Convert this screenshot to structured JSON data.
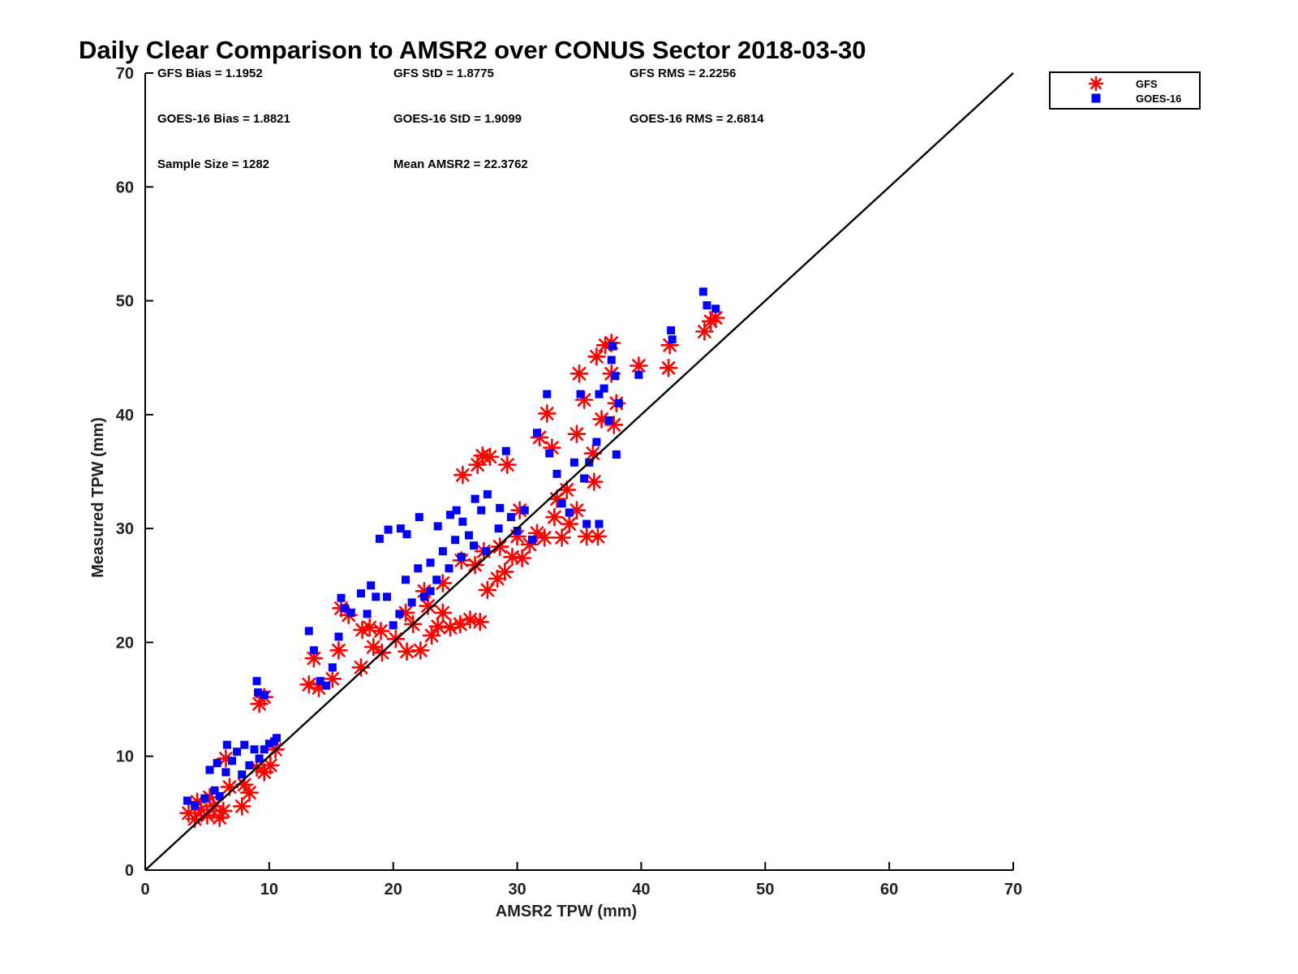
{
  "chart_data": {
    "type": "scatter",
    "title": "Daily Clear Comparison to AMSR2 over CONUS Sector 2018-03-30",
    "xlabel": "AMSR2 TPW (mm)",
    "ylabel": "Measured TPW (mm)",
    "xlim": [
      0,
      70
    ],
    "ylim": [
      0,
      70
    ],
    "x_ticks": [
      0,
      10,
      20,
      30,
      40,
      50,
      60,
      70
    ],
    "y_ticks": [
      0,
      10,
      20,
      30,
      40,
      50,
      60,
      70
    ],
    "grid": false,
    "legend_position": "outside-top-right",
    "reference_line": {
      "from": [
        0,
        0
      ],
      "to": [
        70,
        70
      ]
    },
    "stats": [
      "GFS Bias = 1.1952",
      "GFS StD = 1.8775",
      "GFS RMS = 2.2256",
      "GOES-16 Bias = 1.8821",
      "GOES-16 StD = 1.9099",
      "GOES-16 RMS = 2.6814",
      "Sample Size = 1282",
      "Mean AMSR2 = 22.3762"
    ],
    "series": [
      {
        "name": "GFS",
        "color": "#ff0000",
        "marker": "asterisk",
        "points": [
          [
            3.5,
            5.0
          ],
          [
            4.0,
            4.5
          ],
          [
            4.5,
            5.3
          ],
          [
            5.0,
            4.8
          ],
          [
            5.5,
            5.6
          ],
          [
            6.0,
            4.6
          ],
          [
            6.3,
            5.2
          ],
          [
            4.2,
            6.0
          ],
          [
            5.2,
            6.4
          ],
          [
            7.8,
            5.6
          ],
          [
            6.8,
            7.3
          ],
          [
            8.0,
            7.5
          ],
          [
            8.4,
            6.8
          ],
          [
            6.5,
            9.8
          ],
          [
            9.0,
            9.0
          ],
          [
            9.6,
            8.6
          ],
          [
            10.1,
            9.2
          ],
          [
            10.5,
            10.6
          ],
          [
            9.2,
            14.6
          ],
          [
            9.6,
            15.2
          ],
          [
            13.2,
            16.3
          ],
          [
            14.0,
            16.0
          ],
          [
            13.6,
            18.6
          ],
          [
            15.1,
            16.8
          ],
          [
            15.6,
            19.3
          ],
          [
            15.8,
            23.0
          ],
          [
            16.4,
            22.4
          ],
          [
            17.5,
            21.1
          ],
          [
            18.1,
            21.3
          ],
          [
            17.4,
            17.8
          ],
          [
            18.4,
            19.6
          ],
          [
            19.1,
            19.1
          ],
          [
            19.0,
            21.0
          ],
          [
            20.2,
            20.3
          ],
          [
            21.1,
            19.2
          ],
          [
            21.6,
            21.6
          ],
          [
            22.2,
            19.3
          ],
          [
            23.1,
            20.6
          ],
          [
            23.6,
            21.4
          ],
          [
            24.0,
            22.6
          ],
          [
            24.6,
            21.3
          ],
          [
            25.4,
            21.6
          ],
          [
            26.2,
            22.0
          ],
          [
            27.0,
            21.8
          ],
          [
            27.6,
            24.6
          ],
          [
            28.4,
            25.6
          ],
          [
            29.0,
            26.2
          ],
          [
            29.6,
            27.5
          ],
          [
            30.4,
            27.4
          ],
          [
            31.0,
            28.6
          ],
          [
            31.6,
            29.6
          ],
          [
            32.2,
            29.2
          ],
          [
            33.0,
            31.0
          ],
          [
            33.6,
            29.2
          ],
          [
            34.2,
            30.4
          ],
          [
            34.8,
            31.6
          ],
          [
            35.6,
            29.3
          ],
          [
            36.5,
            29.3
          ],
          [
            25.6,
            34.7
          ],
          [
            26.8,
            35.6
          ],
          [
            27.2,
            36.4
          ],
          [
            27.8,
            36.3
          ],
          [
            29.2,
            35.6
          ],
          [
            30.2,
            31.6
          ],
          [
            31.8,
            38.0
          ],
          [
            32.4,
            40.1
          ],
          [
            32.8,
            37.1
          ],
          [
            33.2,
            32.6
          ],
          [
            34.0,
            33.4
          ],
          [
            34.8,
            38.3
          ],
          [
            35.0,
            43.6
          ],
          [
            35.4,
            41.3
          ],
          [
            36.2,
            34.1
          ],
          [
            36.1,
            36.6
          ],
          [
            36.4,
            45.1
          ],
          [
            37.1,
            46.1
          ],
          [
            37.6,
            46.3
          ],
          [
            37.6,
            43.6
          ],
          [
            37.8,
            39.1
          ],
          [
            38.0,
            41.0
          ],
          [
            36.8,
            39.6
          ],
          [
            39.8,
            44.3
          ],
          [
            42.2,
            44.1
          ],
          [
            42.3,
            46.1
          ],
          [
            45.1,
            47.3
          ],
          [
            45.6,
            48.2
          ],
          [
            46.0,
            48.5
          ],
          [
            22.5,
            24.5
          ],
          [
            24.0,
            25.2
          ],
          [
            25.5,
            27.2
          ],
          [
            27.3,
            28.0
          ],
          [
            28.6,
            28.4
          ],
          [
            30.0,
            29.3
          ],
          [
            21.0,
            22.6
          ],
          [
            22.8,
            23.2
          ],
          [
            26.6,
            26.8
          ]
        ]
      },
      {
        "name": "GOES-16",
        "color": "#0000ff",
        "marker": "square",
        "points": [
          [
            3.4,
            6.1
          ],
          [
            4.0,
            5.7
          ],
          [
            4.8,
            6.3
          ],
          [
            5.6,
            7.0
          ],
          [
            6.0,
            6.5
          ],
          [
            5.2,
            8.8
          ],
          [
            5.8,
            9.4
          ],
          [
            6.5,
            8.6
          ],
          [
            6.6,
            11.0
          ],
          [
            7.0,
            9.6
          ],
          [
            7.4,
            10.4
          ],
          [
            7.8,
            8.4
          ],
          [
            8.0,
            11.0
          ],
          [
            8.4,
            9.2
          ],
          [
            8.8,
            10.6
          ],
          [
            9.2,
            9.8
          ],
          [
            9.6,
            10.6
          ],
          [
            10.0,
            11.1
          ],
          [
            10.4,
            11.3
          ],
          [
            10.6,
            11.6
          ],
          [
            9.0,
            16.6
          ],
          [
            9.1,
            15.6
          ],
          [
            9.6,
            15.4
          ],
          [
            13.2,
            21.0
          ],
          [
            13.6,
            19.3
          ],
          [
            14.1,
            16.6
          ],
          [
            14.6,
            16.2
          ],
          [
            15.1,
            17.8
          ],
          [
            15.6,
            20.5
          ],
          [
            15.8,
            23.9
          ],
          [
            16.1,
            23.0
          ],
          [
            16.6,
            22.6
          ],
          [
            17.4,
            24.3
          ],
          [
            17.9,
            22.5
          ],
          [
            18.2,
            25.0
          ],
          [
            18.6,
            24.0
          ],
          [
            18.9,
            29.1
          ],
          [
            19.6,
            29.9
          ],
          [
            20.6,
            30.0
          ],
          [
            21.1,
            29.5
          ],
          [
            22.1,
            31.0
          ],
          [
            23.0,
            24.5
          ],
          [
            23.6,
            30.2
          ],
          [
            24.6,
            31.2
          ],
          [
            25.1,
            31.6
          ],
          [
            25.6,
            30.6
          ],
          [
            26.1,
            29.4
          ],
          [
            26.6,
            32.6
          ],
          [
            27.1,
            31.6
          ],
          [
            27.6,
            33.0
          ],
          [
            28.6,
            31.8
          ],
          [
            29.1,
            36.8
          ],
          [
            30.0,
            29.8
          ],
          [
            30.6,
            31.6
          ],
          [
            31.2,
            29.0
          ],
          [
            31.6,
            38.4
          ],
          [
            32.4,
            41.8
          ],
          [
            32.6,
            36.6
          ],
          [
            33.2,
            34.8
          ],
          [
            33.6,
            32.2
          ],
          [
            34.2,
            31.4
          ],
          [
            34.6,
            35.8
          ],
          [
            35.1,
            41.8
          ],
          [
            35.4,
            34.4
          ],
          [
            35.6,
            30.4
          ],
          [
            35.8,
            35.8
          ],
          [
            36.4,
            37.6
          ],
          [
            36.6,
            30.4
          ],
          [
            36.6,
            41.8
          ],
          [
            37.0,
            42.3
          ],
          [
            37.4,
            39.5
          ],
          [
            37.6,
            44.8
          ],
          [
            37.7,
            46.0
          ],
          [
            37.9,
            43.4
          ],
          [
            38.0,
            36.5
          ],
          [
            38.2,
            41.0
          ],
          [
            39.8,
            43.5
          ],
          [
            42.4,
            47.4
          ],
          [
            42.5,
            46.6
          ],
          [
            45.0,
            50.8
          ],
          [
            45.3,
            49.6
          ],
          [
            46.0,
            49.3
          ],
          [
            20.5,
            22.5
          ],
          [
            21.5,
            23.5
          ],
          [
            22.5,
            24.0
          ],
          [
            23.5,
            25.5
          ],
          [
            24.5,
            26.5
          ],
          [
            25.5,
            27.5
          ],
          [
            26.5,
            28.5
          ],
          [
            27.5,
            28.0
          ],
          [
            21.0,
            25.5
          ],
          [
            22.0,
            26.5
          ],
          [
            23.0,
            27.0
          ],
          [
            24.0,
            28.0
          ],
          [
            25.0,
            29.0
          ],
          [
            20.0,
            21.5
          ],
          [
            19.5,
            24.0
          ],
          [
            28.5,
            30.0
          ],
          [
            29.5,
            31.0
          ]
        ]
      }
    ]
  },
  "legend": [
    {
      "label": "GFS",
      "color": "#ff0000",
      "marker": "asterisk"
    },
    {
      "label": "GOES-16",
      "color": "#0000ff",
      "marker": "square"
    }
  ]
}
